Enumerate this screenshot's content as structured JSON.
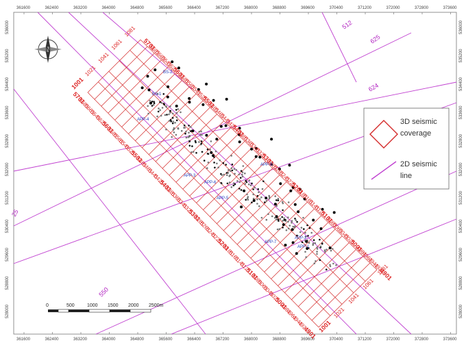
{
  "map": {
    "x_ticks": [
      "361600",
      "362400",
      "363200",
      "364000",
      "364800",
      "365600",
      "366400",
      "367200",
      "368000",
      "368800",
      "369600",
      "370400",
      "371200",
      "372000",
      "372800",
      "373600"
    ],
    "y_ticks": [
      "536000",
      "535200",
      "534400",
      "533600",
      "532800",
      "532000",
      "531200",
      "530400",
      "529600",
      "528800",
      "528000"
    ],
    "north_label": "N",
    "inline_labels": [
      "1001",
      "1021",
      "1041",
      "1061",
      "1081",
      "5701",
      "5681",
      "5661",
      "5641",
      "5621",
      "5601",
      "5581",
      "5561",
      "5541",
      "5521",
      "5501",
      "5481",
      "5461",
      "5441",
      "5421",
      "5401",
      "5381",
      "5361",
      "5341",
      "5321",
      "5301",
      "5281",
      "5261",
      "5241",
      "5221",
      "5201",
      "5181",
      "5161",
      "5141",
      "5121",
      "5101",
      "5081",
      "5061",
      "5041",
      "5021",
      "5001",
      "4981",
      "4961",
      "4941",
      "4921",
      "4901"
    ],
    "line_labels": [
      "512",
      "625",
      "624",
      "25",
      "550"
    ],
    "well_labels": [
      "BS-2",
      "BS-1",
      "APP-4",
      "APP-3",
      "APP-8",
      "APP-6",
      "APP-5",
      "APP-7",
      "APP-2",
      "APP-1"
    ],
    "scale": {
      "ticks": [
        "0",
        "500",
        "1000",
        "1500",
        "2000",
        "2500m"
      ]
    }
  },
  "legend": {
    "coverage_line1": "3D seismic",
    "coverage_line2": "coverage",
    "line2d_line1": "2D seismic",
    "line2d_line2": "line"
  },
  "colors": {
    "grid": "#d42a2a",
    "seismic_2d": "#c040d0",
    "wells": "#111111",
    "well_label": "#1f3fbf"
  }
}
